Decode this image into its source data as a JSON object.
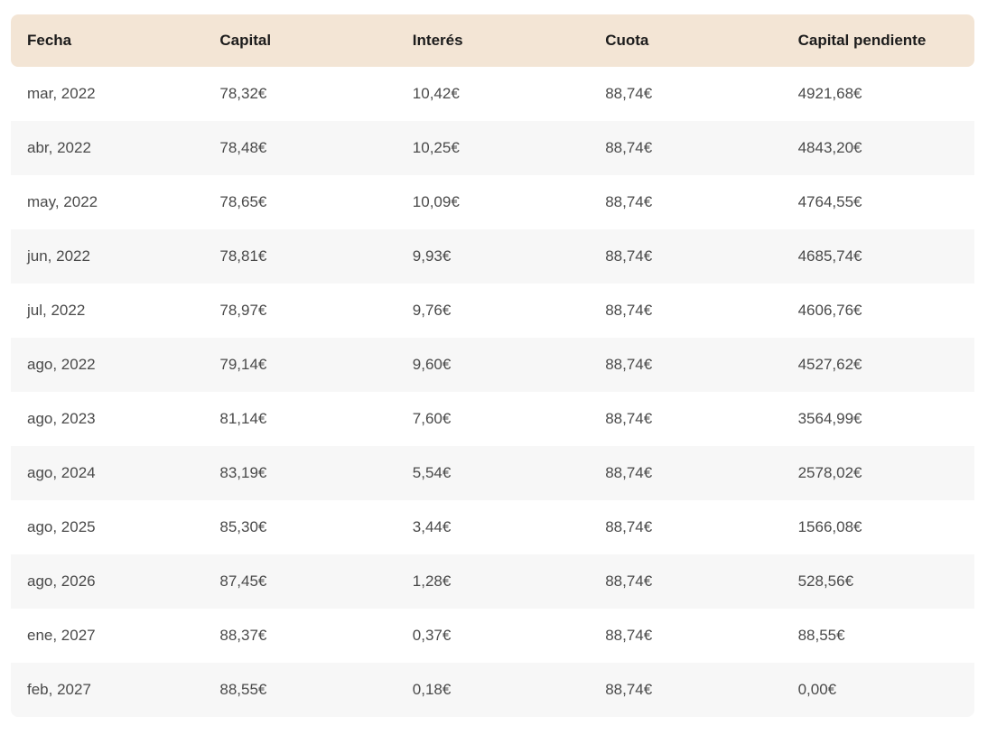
{
  "table": {
    "columns": [
      {
        "key": "fecha",
        "label": "Fecha"
      },
      {
        "key": "capital",
        "label": "Capital"
      },
      {
        "key": "interes",
        "label": "Interés"
      },
      {
        "key": "cuota",
        "label": "Cuota"
      },
      {
        "key": "capital_pendiente",
        "label": "Capital pendiente"
      }
    ],
    "rows": [
      {
        "fecha": "mar, 2022",
        "capital": "78,32€",
        "interes": "10,42€",
        "cuota": "88,74€",
        "capital_pendiente": "4921,68€"
      },
      {
        "fecha": "abr, 2022",
        "capital": "78,48€",
        "interes": "10,25€",
        "cuota": "88,74€",
        "capital_pendiente": "4843,20€"
      },
      {
        "fecha": "may, 2022",
        "capital": "78,65€",
        "interes": "10,09€",
        "cuota": "88,74€",
        "capital_pendiente": "4764,55€"
      },
      {
        "fecha": "jun, 2022",
        "capital": "78,81€",
        "interes": "9,93€",
        "cuota": "88,74€",
        "capital_pendiente": "4685,74€"
      },
      {
        "fecha": "jul, 2022",
        "capital": "78,97€",
        "interes": "9,76€",
        "cuota": "88,74€",
        "capital_pendiente": "4606,76€"
      },
      {
        "fecha": "ago, 2022",
        "capital": "79,14€",
        "interes": "9,60€",
        "cuota": "88,74€",
        "capital_pendiente": "4527,62€"
      },
      {
        "fecha": "ago, 2023",
        "capital": "81,14€",
        "interes": "7,60€",
        "cuota": "88,74€",
        "capital_pendiente": "3564,99€"
      },
      {
        "fecha": "ago, 2024",
        "capital": "83,19€",
        "interes": "5,54€",
        "cuota": "88,74€",
        "capital_pendiente": "2578,02€"
      },
      {
        "fecha": "ago, 2025",
        "capital": "85,30€",
        "interes": "3,44€",
        "cuota": "88,74€",
        "capital_pendiente": "1566,08€"
      },
      {
        "fecha": "ago, 2026",
        "capital": "87,45€",
        "interes": "1,28€",
        "cuota": "88,74€",
        "capital_pendiente": "528,56€"
      },
      {
        "fecha": "ene, 2027",
        "capital": "88,37€",
        "interes": "0,37€",
        "cuota": "88,74€",
        "capital_pendiente": "88,55€"
      },
      {
        "fecha": "feb, 2027",
        "capital": "88,55€",
        "interes": "0,18€",
        "cuota": "88,74€",
        "capital_pendiente": "0,00€"
      }
    ]
  },
  "colors": {
    "header_bg": "#f3e5d5",
    "stripe_bg": "#f7f7f7",
    "header_text": "#1c1c1c",
    "body_text": "#4a4a4a"
  }
}
